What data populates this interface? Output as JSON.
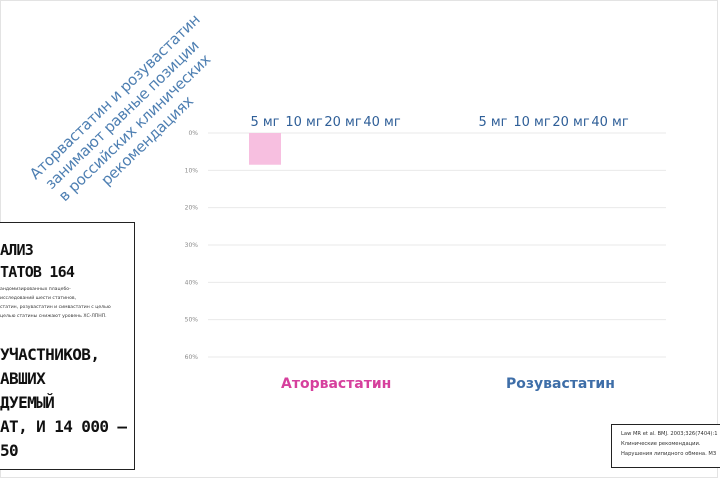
{
  "caption": {
    "lines": [
      "Аторвастатин и розувастатин",
      "занимают равные позиции",
      "в российских клинических",
      "рекомендациях"
    ]
  },
  "info_box": {
    "title_lines": [
      "АЛИЗ",
      "ТАТОВ 164"
    ],
    "small_lines": [
      "андомизированных плацебо-",
      "исследований шести статинов,",
      "статин, розувастатин и симвастатин с целью",
      "целью статины снижают уровень ХС-ЛПНП."
    ],
    "big_lines": [
      "УЧАСТНИКОВ,",
      "АВШИХ",
      "ДУЕМЫЙ",
      "АТ, И 14 000 —",
      "50"
    ]
  },
  "reference": {
    "lines": [
      "Law MR et al. BMJ. 2003;326(7404):1",
      "Клинические рекомендации.",
      "Нарушения липидного обмена. МЗ"
    ]
  },
  "chart_data": {
    "type": "bar",
    "groups": [
      {
        "name": "Аторвастатин",
        "color": "#d6409d",
        "doses": [
          "5 мг",
          "10 мг",
          "20 мг",
          "40 мг"
        ],
        "values": [
          -8.5,
          null,
          null,
          null
        ]
      },
      {
        "name": "Розувастатин",
        "color": "#3e6ea8",
        "doses": [
          "5 мг",
          "10 мг",
          "20 мг",
          "40 мг"
        ],
        "values": [
          null,
          null,
          null,
          null
        ]
      }
    ],
    "bar_fill": "#f7bfe0",
    "y_ticks": [
      "0%",
      "10%",
      "20%",
      "30%",
      "40%",
      "50%",
      "60%"
    ],
    "y_values": [
      0,
      -10,
      -20,
      -30,
      -40,
      -50,
      -60
    ],
    "ylim": [
      -60,
      0
    ],
    "grid": true,
    "dose_label_color": "#2f5f98",
    "grid_color": "#e9e9e9"
  }
}
